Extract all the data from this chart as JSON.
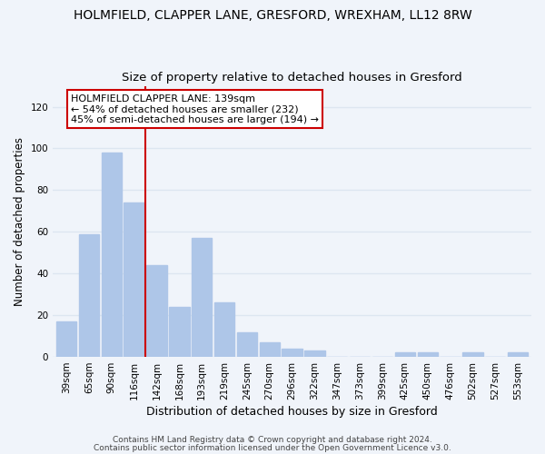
{
  "title": "HOLMFIELD, CLAPPER LANE, GRESFORD, WREXHAM, LL12 8RW",
  "subtitle": "Size of property relative to detached houses in Gresford",
  "xlabel": "Distribution of detached houses by size in Gresford",
  "ylabel": "Number of detached properties",
  "bar_labels": [
    "39sqm",
    "65sqm",
    "90sqm",
    "116sqm",
    "142sqm",
    "168sqm",
    "193sqm",
    "219sqm",
    "245sqm",
    "270sqm",
    "296sqm",
    "322sqm",
    "347sqm",
    "373sqm",
    "399sqm",
    "425sqm",
    "450sqm",
    "476sqm",
    "502sqm",
    "527sqm",
    "553sqm"
  ],
  "bar_values": [
    17,
    59,
    98,
    74,
    44,
    24,
    57,
    26,
    12,
    7,
    4,
    3,
    0,
    0,
    0,
    2,
    2,
    0,
    2,
    0,
    2
  ],
  "bar_color": "#aec6e8",
  "marker_value": "142sqm",
  "marker_color": "#cc0000",
  "ylim": [
    0,
    130
  ],
  "yticks": [
    0,
    20,
    40,
    60,
    80,
    100,
    120
  ],
  "annotation_title": "HOLMFIELD CLAPPER LANE: 139sqm",
  "annotation_line1": "← 54% of detached houses are smaller (232)",
  "annotation_line2": "45% of semi-detached houses are larger (194) →",
  "footer_line1": "Contains HM Land Registry data © Crown copyright and database right 2024.",
  "footer_line2": "Contains public sector information licensed under the Open Government Licence v3.0.",
  "background_color": "#f0f4fa",
  "annotation_box_facecolor": "#ffffff",
  "annotation_box_edgecolor": "#cc0000",
  "grid_color": "#dde6f0",
  "title_fontsize": 10,
  "subtitle_fontsize": 9.5,
  "xlabel_fontsize": 9,
  "ylabel_fontsize": 8.5,
  "tick_fontsize": 7.5,
  "annotation_fontsize": 8,
  "footer_fontsize": 6.5
}
